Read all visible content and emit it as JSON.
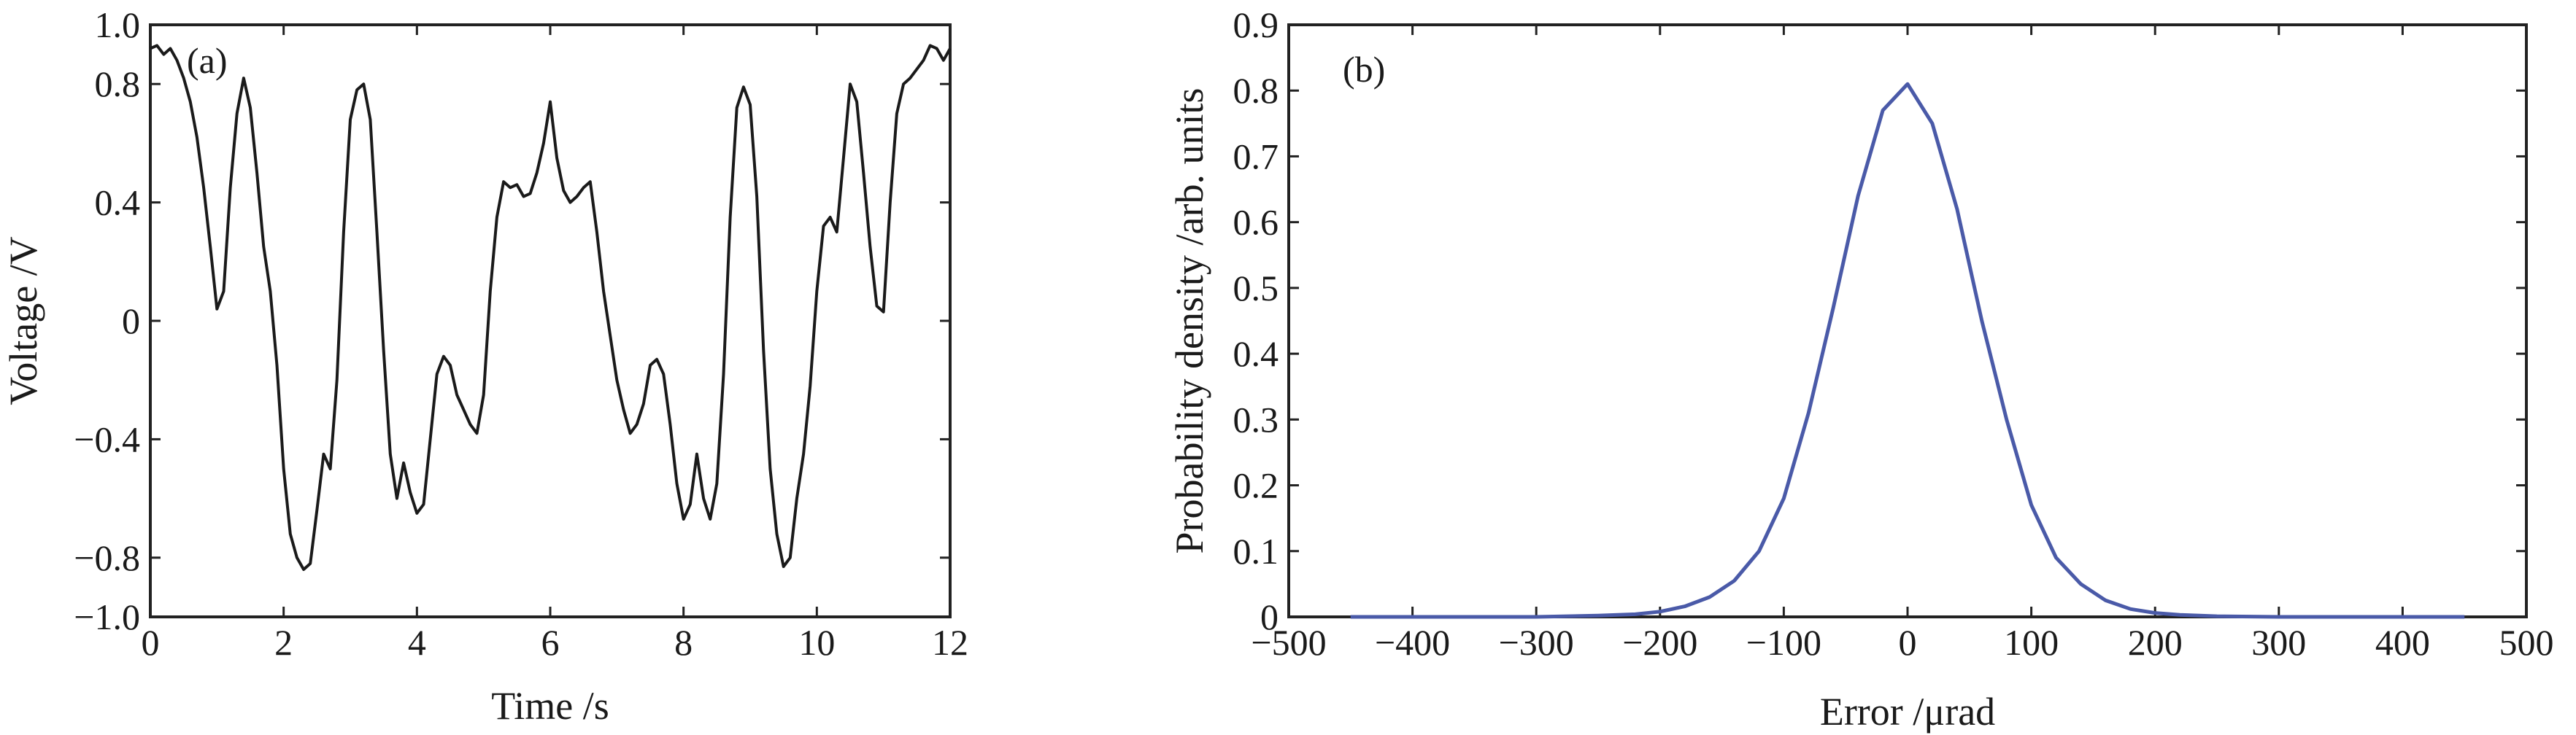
{
  "chart_data": [
    {
      "type": "line",
      "panel_label": "(a)",
      "xlabel": "Time /s",
      "ylabel": "Voltage /V",
      "xlim": [
        0,
        12
      ],
      "ylim": [
        -1.0,
        1.0
      ],
      "x_ticks": [
        0,
        2,
        4,
        6,
        8,
        10,
        12
      ],
      "x_tick_labels": [
        "0",
        "2",
        "4",
        "6",
        "8",
        "10",
        "12"
      ],
      "y_ticks": [
        -1.0,
        -0.8,
        -0.4,
        0,
        0.4,
        0.8,
        1.0
      ],
      "y_tick_labels": [
        "−1.0",
        "−0.8",
        "−0.4",
        "0",
        "0.4",
        "0.8",
        "1.0"
      ],
      "grid": false,
      "color": "#1a1a1a",
      "series": [
        {
          "x": [
            0,
            0.1,
            0.2,
            0.3,
            0.4,
            0.5,
            0.6,
            0.7,
            0.8,
            0.9,
            1.0,
            1.1,
            1.2,
            1.3,
            1.4,
            1.5,
            1.6,
            1.7,
            1.8,
            1.9,
            2.0,
            2.1,
            2.2,
            2.3,
            2.4,
            2.5,
            2.6,
            2.7,
            2.8,
            2.9,
            3.0,
            3.1,
            3.2,
            3.3,
            3.4,
            3.5,
            3.6,
            3.7,
            3.8,
            3.9,
            4.0,
            4.1,
            4.2,
            4.3,
            4.4,
            4.5,
            4.6,
            4.7,
            4.8,
            4.9,
            5.0,
            5.1,
            5.2,
            5.3,
            5.4,
            5.5,
            5.6,
            5.7,
            5.8,
            5.9,
            6.0,
            6.1,
            6.2,
            6.3,
            6.4,
            6.5,
            6.6,
            6.7,
            6.8,
            6.9,
            7.0,
            7.1,
            7.2,
            7.3,
            7.4,
            7.5,
            7.6,
            7.7,
            7.8,
            7.9,
            8.0,
            8.1,
            8.2,
            8.3,
            8.4,
            8.5,
            8.6,
            8.7,
            8.8,
            8.9,
            9.0,
            9.1,
            9.2,
            9.3,
            9.4,
            9.5,
            9.6,
            9.7,
            9.8,
            9.9,
            10.0,
            10.1,
            10.2,
            10.3,
            10.4,
            10.5,
            10.6,
            10.7,
            10.8,
            10.9,
            11.0,
            11.1,
            11.2,
            11.3,
            11.4,
            11.5,
            11.6,
            11.7,
            11.8,
            11.9,
            12.0
          ],
          "y": [
            0.92,
            0.93,
            0.9,
            0.92,
            0.88,
            0.82,
            0.74,
            0.62,
            0.45,
            0.25,
            0.04,
            0.1,
            0.45,
            0.7,
            0.82,
            0.72,
            0.5,
            0.25,
            0.1,
            -0.15,
            -0.5,
            -0.72,
            -0.8,
            -0.84,
            -0.82,
            -0.64,
            -0.45,
            -0.5,
            -0.2,
            0.3,
            0.68,
            0.78,
            0.8,
            0.68,
            0.3,
            -0.1,
            -0.45,
            -0.6,
            -0.48,
            -0.58,
            -0.65,
            -0.62,
            -0.4,
            -0.18,
            -0.12,
            -0.15,
            -0.25,
            -0.3,
            -0.35,
            -0.38,
            -0.25,
            0.1,
            0.35,
            0.47,
            0.45,
            0.46,
            0.42,
            0.43,
            0.5,
            0.6,
            0.74,
            0.55,
            0.44,
            0.4,
            0.42,
            0.45,
            0.47,
            0.3,
            0.1,
            -0.05,
            -0.2,
            -0.3,
            -0.38,
            -0.35,
            -0.28,
            -0.15,
            -0.13,
            -0.18,
            -0.35,
            -0.55,
            -0.67,
            -0.62,
            -0.45,
            -0.6,
            -0.67,
            -0.55,
            -0.18,
            0.35,
            0.72,
            0.79,
            0.73,
            0.42,
            -0.1,
            -0.5,
            -0.72,
            -0.83,
            -0.8,
            -0.6,
            -0.45,
            -0.22,
            0.1,
            0.32,
            0.35,
            0.3,
            0.55,
            0.8,
            0.74,
            0.5,
            0.25,
            0.05,
            0.03,
            0.4,
            0.7,
            0.8,
            0.82,
            0.85,
            0.88,
            0.93,
            0.92,
            0.88,
            0.92
          ]
        }
      ]
    },
    {
      "type": "line",
      "panel_label": "(b)",
      "xlabel": "Error /μrad",
      "ylabel": "Probability density /arb. units",
      "xlim": [
        -500,
        500
      ],
      "ylim": [
        0,
        0.9
      ],
      "x_ticks": [
        -500,
        -400,
        -300,
        -200,
        -100,
        0,
        100,
        200,
        300,
        400,
        500
      ],
      "x_tick_labels": [
        "−500",
        "−400",
        "−300",
        "−200",
        "−100",
        "0",
        "100",
        "200",
        "300",
        "400",
        "500"
      ],
      "y_ticks": [
        0,
        0.1,
        0.2,
        0.3,
        0.4,
        0.5,
        0.6,
        0.7,
        0.8,
        0.9
      ],
      "y_tick_labels": [
        "0",
        "0.1",
        "0.2",
        "0.3",
        "0.4",
        "0.5",
        "0.6",
        "0.7",
        "0.8",
        "0.9"
      ],
      "grid": false,
      "color": "#4a5aa8",
      "series": [
        {
          "x": [
            -450,
            -400,
            -350,
            -300,
            -250,
            -220,
            -200,
            -180,
            -160,
            -140,
            -120,
            -100,
            -80,
            -60,
            -40,
            -20,
            0,
            20,
            40,
            60,
            80,
            100,
            120,
            140,
            160,
            180,
            200,
            220,
            250,
            300,
            350,
            400,
            450
          ],
          "y": [
            0.0,
            0.0,
            0.0,
            0.0,
            0.002,
            0.004,
            0.008,
            0.016,
            0.03,
            0.055,
            0.1,
            0.18,
            0.31,
            0.47,
            0.64,
            0.77,
            0.81,
            0.75,
            0.62,
            0.45,
            0.3,
            0.17,
            0.09,
            0.05,
            0.025,
            0.012,
            0.006,
            0.003,
            0.001,
            0.0,
            0.0,
            0.0,
            0.0
          ]
        }
      ]
    }
  ]
}
